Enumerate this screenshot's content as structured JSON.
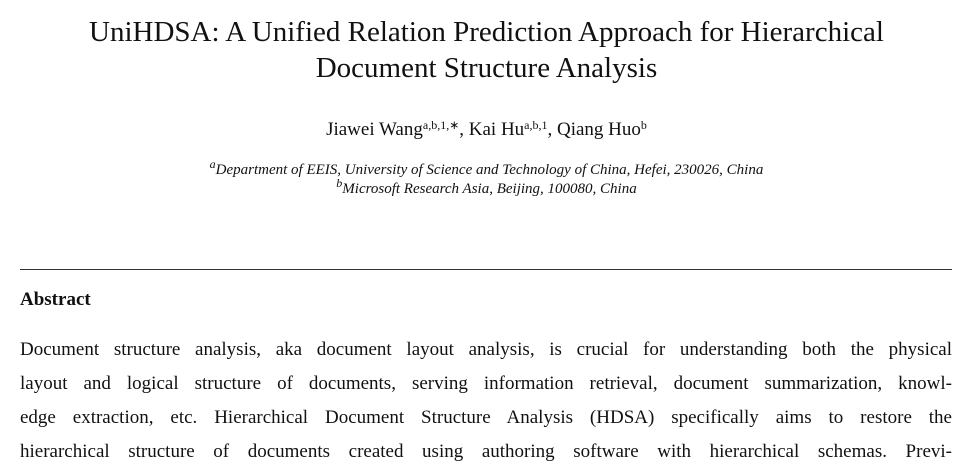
{
  "title": {
    "lines": [
      "UniHDSA: A Unified Relation Prediction Approach for Hierarchical",
      "Document Structure Analysis"
    ]
  },
  "authors": [
    {
      "name": "Jiawei Wang",
      "sup": "a,b,1,∗"
    },
    {
      "name": "Kai Hu",
      "sup": "a,b,1"
    },
    {
      "name": "Qiang Huo",
      "sup": "b"
    }
  ],
  "author_separator": ", ",
  "affiliations": [
    {
      "mark": "a",
      "text": "Department of EEIS, University of Science and Technology of China, Hefei, 230026, China"
    },
    {
      "mark": "b",
      "text": "Microsoft Research Asia, Beijing, 100080, China"
    }
  ],
  "abstract": {
    "heading": "Abstract",
    "lines": [
      "Document structure analysis, aka document layout analysis, is crucial for understanding both the physical",
      "layout and logical structure of documents, serving information retrieval, document summarization, knowl-",
      "edge extraction, etc. Hierarchical Document Structure Analysis (HDSA) specifically aims to restore the",
      "hierarchical structure of documents created using authoring software with hierarchical schemas. Previ-"
    ]
  }
}
